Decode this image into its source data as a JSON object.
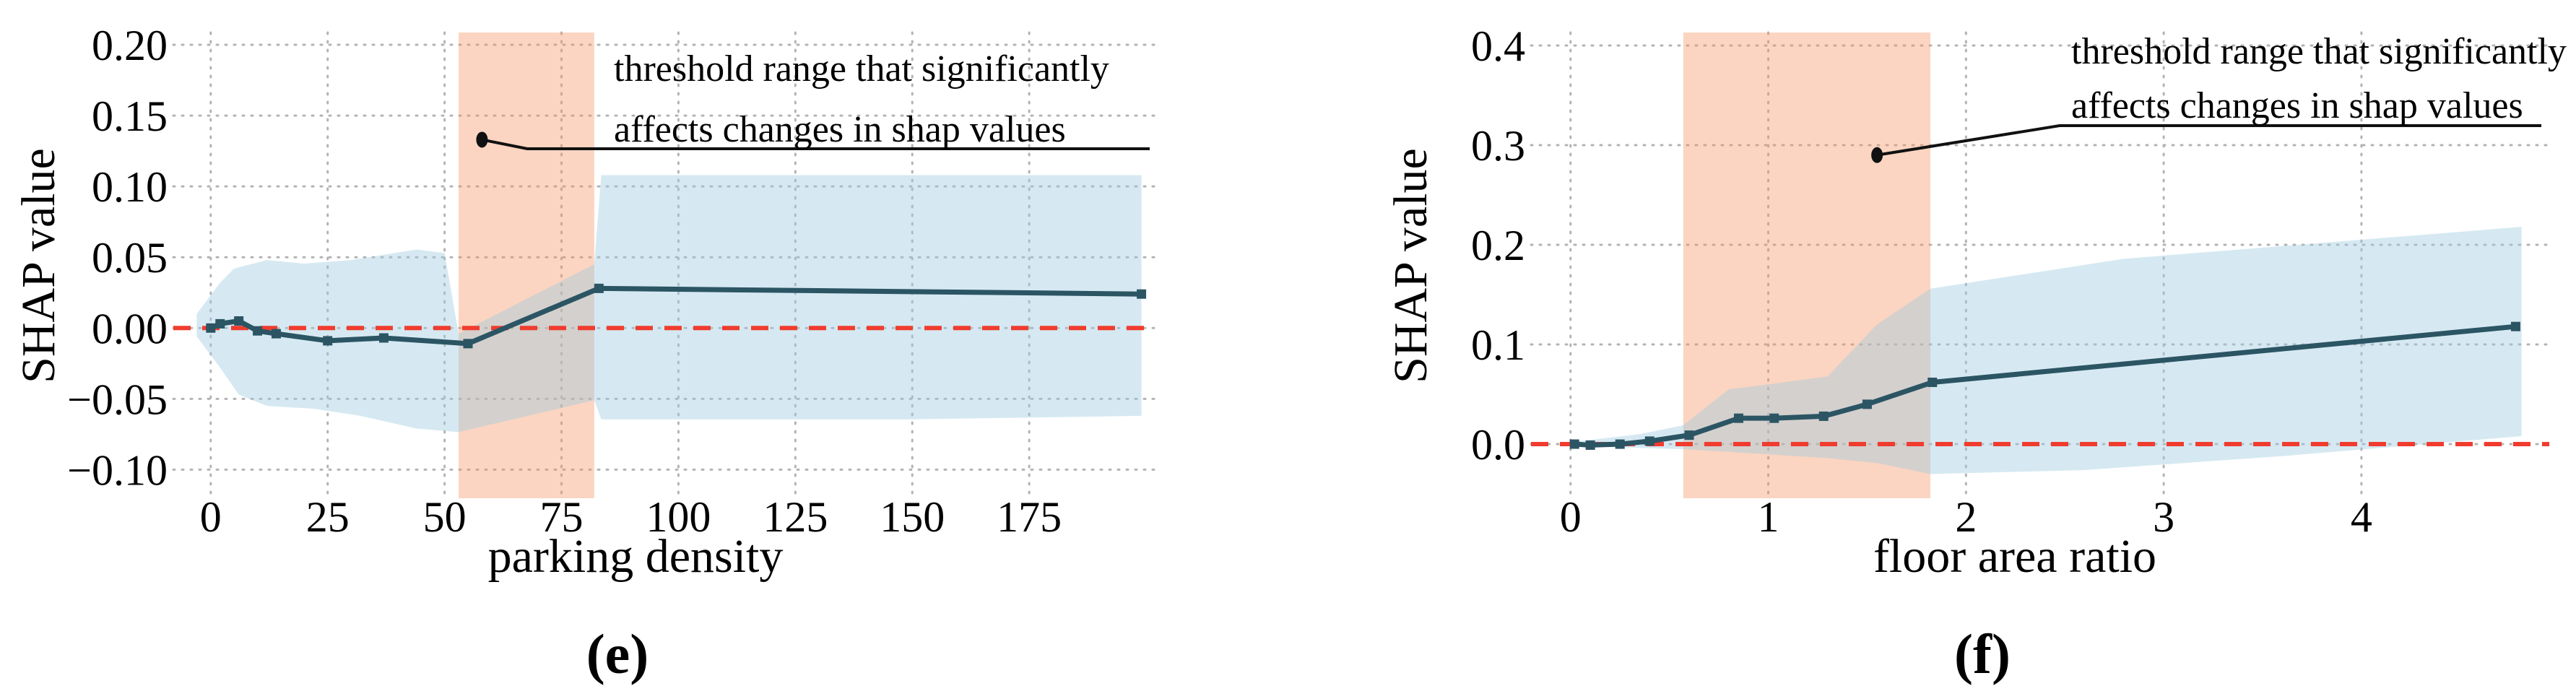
{
  "page": {
    "background": "#ffffff"
  },
  "annotation": {
    "line1": "threshold range that significantly",
    "line2": "affects changes in shap values"
  },
  "colors": {
    "line": "#2c5564",
    "marker": "#2c5564",
    "confidence_band_fill": "rgba(158,202,225,0.42)",
    "threshold_band_fill": "rgba(245,150,100,0.40)",
    "zero_line": "#f03c2e",
    "gridline": "#b3b3b3",
    "annotation_ink": "#111111"
  },
  "chart_data": [
    {
      "id": "e",
      "type": "line",
      "caption": "(e)",
      "xlabel": "parking density",
      "ylabel": "SHAP value",
      "xlim": [
        -8,
        202
      ],
      "ylim": [
        -0.1202,
        0.2087
      ],
      "xticks": [
        0,
        25,
        50,
        75,
        100,
        125,
        150,
        175
      ],
      "xtick_labels": [
        "0",
        "25",
        "50",
        "75",
        "100",
        "125",
        "150",
        "175"
      ],
      "yticks": [
        0.2,
        0.15,
        0.1,
        0.05,
        0.0,
        -0.05,
        -0.1
      ],
      "ytick_labels": [
        "0.20",
        "0.15",
        "0.10",
        "0.05",
        "0.00",
        "−0.05",
        "−0.10"
      ],
      "grid": true,
      "legend": "none",
      "zero_line_y": 0,
      "threshold_band": {
        "x0": 53,
        "x1": 82
      },
      "series": [
        {
          "name": "mean SHAP value",
          "x": [
            0,
            2,
            6,
            10,
            14,
            25,
            37,
            55,
            83,
            199
          ],
          "y": [
            0.0,
            0.003,
            0.005,
            -0.002,
            -0.004,
            -0.009,
            -0.007,
            -0.011,
            0.028,
            0.024
          ]
        }
      ],
      "confidence_band": {
        "top": [
          [
            -3,
            0.01
          ],
          [
            2,
            0.032
          ],
          [
            5,
            0.042
          ],
          [
            12,
            0.048
          ],
          [
            20,
            0.0455
          ],
          [
            30,
            0.048
          ],
          [
            44,
            0.0555
          ],
          [
            50,
            0.053
          ],
          [
            53,
            -0.004
          ],
          [
            82,
            0.045
          ],
          [
            83.5,
            0.108
          ],
          [
            196,
            0.108
          ],
          [
            199,
            0.108
          ]
        ],
        "bottom": [
          [
            -3,
            -0.006
          ],
          [
            2,
            -0.028
          ],
          [
            6,
            -0.047
          ],
          [
            12,
            -0.055
          ],
          [
            22,
            -0.057
          ],
          [
            32,
            -0.062
          ],
          [
            44,
            -0.071
          ],
          [
            53,
            -0.0735
          ],
          [
            82,
            -0.051
          ],
          [
            83.5,
            -0.0645
          ],
          [
            150,
            -0.0645
          ],
          [
            199,
            -0.062
          ]
        ]
      },
      "annotation_dot": {
        "x": 58,
        "y": 0.133
      }
    },
    {
      "id": "f",
      "type": "line",
      "caption": "(f)",
      "xlabel": "floor area ratio",
      "ylabel": "SHAP value",
      "xlim": [
        -0.2,
        4.95
      ],
      "ylim": [
        -0.0543,
        0.413
      ],
      "xticks": [
        0,
        1,
        2,
        3,
        4
      ],
      "xtick_labels": [
        "0",
        "1",
        "2",
        "3",
        "4"
      ],
      "yticks": [
        0.4,
        0.3,
        0.2,
        0.1,
        0.0
      ],
      "ytick_labels": [
        "0.4",
        "0.3",
        "0.2",
        "0.1",
        "0.0"
      ],
      "grid": true,
      "legend": "none",
      "zero_line_y": 0,
      "threshold_band": {
        "x0": 0.57,
        "x1": 1.82
      },
      "series": [
        {
          "name": "mean SHAP value",
          "x": [
            0.02,
            0.1,
            0.25,
            0.4,
            0.6,
            0.85,
            1.03,
            1.28,
            1.5,
            1.83,
            4.78
          ],
          "y": [
            0.0,
            -0.001,
            0.0,
            0.003,
            0.009,
            0.026,
            0.026,
            0.028,
            0.04,
            0.062,
            0.118
          ]
        }
      ],
      "confidence_band": {
        "top": [
          [
            0,
            0.002
          ],
          [
            0.35,
            0.01
          ],
          [
            0.57,
            0.019
          ],
          [
            0.8,
            0.055
          ],
          [
            1.0,
            0.06
          ],
          [
            1.3,
            0.068
          ],
          [
            1.55,
            0.12
          ],
          [
            1.82,
            0.156
          ],
          [
            2.8,
            0.186
          ],
          [
            4.81,
            0.218
          ]
        ],
        "bottom": [
          [
            0,
            -0.002
          ],
          [
            0.57,
            -0.005
          ],
          [
            0.9,
            -0.009
          ],
          [
            1.3,
            -0.014
          ],
          [
            1.55,
            -0.019
          ],
          [
            1.82,
            -0.03
          ],
          [
            2.6,
            -0.026
          ],
          [
            3.6,
            -0.012
          ],
          [
            4.81,
            0.008
          ]
        ]
      },
      "annotation_dot": {
        "x": 1.55,
        "y": 0.29
      }
    }
  ]
}
